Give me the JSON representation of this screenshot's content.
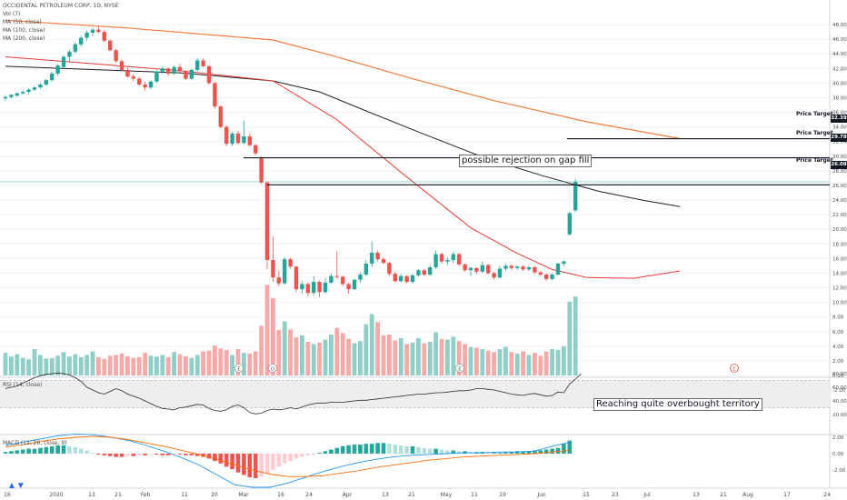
{
  "chart_data": {
    "type": "candlestick",
    "legend": {
      "symbol": "OCCIDENTAL PETROLEUM CORP, 1D, NYSE",
      "volume": "Vol (7)",
      "ma50": "MA (50, close)",
      "ma100": "MA (100, close)",
      "ma200": "MA (200, close)"
    },
    "price_axis": {
      "ylim": [
        -2,
        49
      ],
      "ticks": [
        "48.00",
        "46.00",
        "44.00",
        "42.00",
        "40.00",
        "38.00",
        "36.00",
        "34.00",
        "32.00",
        "30.00",
        "28.00",
        "26.00",
        "24.00",
        "22.00",
        "20.00",
        "18.00",
        "16.00",
        "14.00",
        "12.00",
        "10.00",
        "8.00",
        "6.00",
        "4.00",
        "2.00",
        "0.00",
        "-2.00"
      ]
    },
    "x_axis": {
      "labels": [
        "16",
        "2020",
        "13",
        "21",
        "Feb",
        "11",
        "20",
        "Mar",
        "16",
        "24",
        "Apr",
        "13",
        "21",
        "May",
        "11",
        "19",
        "Jun",
        "15",
        "23",
        "Jul",
        "13",
        "21",
        "Aug",
        "17",
        "24"
      ]
    },
    "candles": [
      [
        37.9,
        38.3,
        37.6,
        38.1
      ],
      [
        38.1,
        38.5,
        37.9,
        38.4
      ],
      [
        38.3,
        38.7,
        38.1,
        38.6
      ],
      [
        38.6,
        39.0,
        38.4,
        38.8
      ],
      [
        38.8,
        39.3,
        38.5,
        39.1
      ],
      [
        39.1,
        39.6,
        38.9,
        39.4
      ],
      [
        39.4,
        40.0,
        39.2,
        39.8
      ],
      [
        39.8,
        40.6,
        39.6,
        40.4
      ],
      [
        40.4,
        41.6,
        40.2,
        41.3
      ],
      [
        41.3,
        42.6,
        41.0,
        42.4
      ],
      [
        42.2,
        43.8,
        42.0,
        43.6
      ],
      [
        43.6,
        44.6,
        42.9,
        44.3
      ],
      [
        44.3,
        45.6,
        44.0,
        45.3
      ],
      [
        45.3,
        46.5,
        45.0,
        46.2
      ],
      [
        46.2,
        47.2,
        45.8,
        46.9
      ],
      [
        46.9,
        47.6,
        46.4,
        47.3
      ],
      [
        47.3,
        47.8,
        46.8,
        47.0
      ],
      [
        47.0,
        47.3,
        45.6,
        45.8
      ],
      [
        45.8,
        46.0,
        44.3,
        44.5
      ],
      [
        44.5,
        44.7,
        42.8,
        43.0
      ],
      [
        43.0,
        43.2,
        41.6,
        41.8
      ],
      [
        41.8,
        42.1,
        40.7,
        40.9
      ],
      [
        40.9,
        41.2,
        40.3,
        40.6
      ],
      [
        40.6,
        40.9,
        39.6,
        39.8
      ],
      [
        39.8,
        40.2,
        39.0,
        39.4
      ],
      [
        39.4,
        40.4,
        39.2,
        40.2
      ],
      [
        40.2,
        41.8,
        40.0,
        41.6
      ],
      [
        41.6,
        42.3,
        41.2,
        42.0
      ],
      [
        42.0,
        42.2,
        41.0,
        41.3
      ],
      [
        41.3,
        42.4,
        41.1,
        42.2
      ],
      [
        42.2,
        42.6,
        41.4,
        41.6
      ],
      [
        41.6,
        41.8,
        40.4,
        40.6
      ],
      [
        40.6,
        42.0,
        40.4,
        41.8
      ],
      [
        41.8,
        43.4,
        41.6,
        43.1
      ],
      [
        43.1,
        43.4,
        42.1,
        42.3
      ],
      [
        42.3,
        42.5,
        39.8,
        40.0
      ],
      [
        40.0,
        40.2,
        36.5,
        36.8
      ],
      [
        36.8,
        37.0,
        33.8,
        34.0
      ],
      [
        34.0,
        34.2,
        31.4,
        31.7
      ],
      [
        31.7,
        33.3,
        31.4,
        33.1
      ],
      [
        33.1,
        33.5,
        31.6,
        31.8
      ],
      [
        31.8,
        34.8,
        31.6,
        32.7
      ],
      [
        32.7,
        33.1,
        31.3,
        31.5
      ],
      [
        31.5,
        31.7,
        30.1,
        30.4
      ],
      [
        29.8,
        30.0,
        26.2,
        26.4
      ],
      [
        26.4,
        26.6,
        14.6,
        15.8
      ],
      [
        15.8,
        19.0,
        12.8,
        13.4
      ],
      [
        13.4,
        14.3,
        12.2,
        12.6
      ],
      [
        12.6,
        16.2,
        12.4,
        15.9
      ],
      [
        15.9,
        16.1,
        14.6,
        14.9
      ],
      [
        14.9,
        15.0,
        11.4,
        11.8
      ],
      [
        11.8,
        12.9,
        11.2,
        12.5
      ],
      [
        12.5,
        12.7,
        10.8,
        11.3
      ],
      [
        11.3,
        13.6,
        10.9,
        12.8
      ],
      [
        12.8,
        13.0,
        10.7,
        11.4
      ],
      [
        11.4,
        13.3,
        11.2,
        12.7
      ],
      [
        12.7,
        13.9,
        12.5,
        13.6
      ],
      [
        13.6,
        17.0,
        13.2,
        13.5
      ],
      [
        13.5,
        13.7,
        12.2,
        12.5
      ],
      [
        12.5,
        12.7,
        11.2,
        11.8
      ],
      [
        11.8,
        13.2,
        11.7,
        13.1
      ],
      [
        13.1,
        14.1,
        12.7,
        13.8
      ],
      [
        13.8,
        15.8,
        13.6,
        15.3
      ],
      [
        15.3,
        18.3,
        14.8,
        16.8
      ],
      [
        16.8,
        17.1,
        15.6,
        15.9
      ],
      [
        15.9,
        16.2,
        15.2,
        15.4
      ],
      [
        15.4,
        15.6,
        13.6,
        13.9
      ],
      [
        13.9,
        14.2,
        12.7,
        12.9
      ],
      [
        12.9,
        13.9,
        12.7,
        13.6
      ],
      [
        13.6,
        13.7,
        12.6,
        12.8
      ],
      [
        12.8,
        13.9,
        12.6,
        13.7
      ],
      [
        13.7,
        14.6,
        13.5,
        14.4
      ],
      [
        14.4,
        14.6,
        13.6,
        13.8
      ],
      [
        13.8,
        15.1,
        13.6,
        14.8
      ],
      [
        14.8,
        17.1,
        14.6,
        16.6
      ],
      [
        16.6,
        16.8,
        15.3,
        15.6
      ],
      [
        15.6,
        16.1,
        15.2,
        15.8
      ],
      [
        15.8,
        17.0,
        15.4,
        16.6
      ],
      [
        16.6,
        16.8,
        14.9,
        15.2
      ],
      [
        15.2,
        15.3,
        14.2,
        14.4
      ],
      [
        14.4,
        14.9,
        13.6,
        14.7
      ],
      [
        14.7,
        14.8,
        13.9,
        14.2
      ],
      [
        14.2,
        15.6,
        14.0,
        15.1
      ],
      [
        15.1,
        15.3,
        13.8,
        14.0
      ],
      [
        14.0,
        14.2,
        13.1,
        13.4
      ],
      [
        13.4,
        15.0,
        13.2,
        14.6
      ],
      [
        14.6,
        15.3,
        14.3,
        15.0
      ],
      [
        15.0,
        15.2,
        14.4,
        14.7
      ],
      [
        14.7,
        15.0,
        14.4,
        14.9
      ],
      [
        14.9,
        15.1,
        14.3,
        14.5
      ],
      [
        14.5,
        15.0,
        14.3,
        14.8
      ],
      [
        14.8,
        15.0,
        13.9,
        14.1
      ],
      [
        14.1,
        14.3,
        13.6,
        13.8
      ],
      [
        13.8,
        14.0,
        12.9,
        13.2
      ],
      [
        13.2,
        14.0,
        13.0,
        13.8
      ],
      [
        13.8,
        15.4,
        13.7,
        15.3
      ],
      [
        15.3,
        15.7,
        15.0,
        15.6
      ],
      [
        19.3,
        22.4,
        19.1,
        22.2
      ],
      [
        22.6,
        26.9,
        22.3,
        26.5
      ]
    ],
    "volume": [
      3.1,
      2.6,
      2.9,
      2.4,
      2.2,
      3.6,
      2.8,
      2.3,
      2.4,
      2.7,
      3.2,
      2.6,
      2.9,
      2.5,
      2.8,
      3.3,
      2.5,
      2.3,
      2.7,
      2.8,
      3.0,
      2.6,
      2.4,
      2.5,
      3.1,
      2.7,
      2.6,
      2.8,
      2.5,
      3.2,
      2.9,
      2.6,
      2.4,
      2.8,
      3.3,
      3.4,
      4.1,
      3.7,
      3.5,
      2.8,
      3.6,
      3.1,
      3.0,
      3.3,
      6.8,
      12.4,
      10.6,
      6.2,
      7.4,
      6.3,
      5.2,
      5.5,
      4.6,
      4.3,
      4.5,
      4.9,
      5.6,
      6.5,
      5.8,
      5.0,
      4.4,
      4.7,
      7.0,
      8.4,
      7.3,
      5.5,
      5.6,
      4.8,
      5.1,
      4.3,
      4.5,
      5.1,
      4.4,
      4.6,
      5.9,
      5.0,
      4.9,
      5.3,
      4.7,
      4.3,
      3.9,
      3.8,
      3.6,
      3.4,
      3.2,
      3.6,
      3.9,
      3.2,
      3.0,
      3.3,
      2.8,
      3.1,
      2.7,
      3.3,
      3.6,
      3.5,
      4.0,
      10.1,
      10.8
    ],
    "moving_averages": {
      "ma50": [
        [
          0,
          43.6
        ],
        [
          30,
          41.7
        ],
        [
          46,
          40.3
        ],
        [
          57,
          35
        ],
        [
          68,
          27.8
        ],
        [
          80,
          20.2
        ],
        [
          88,
          16.7
        ],
        [
          94,
          14.5
        ],
        [
          100,
          13.4
        ],
        [
          108,
          13.3
        ],
        [
          116,
          14.3
        ]
      ],
      "ma100": [
        [
          0,
          42.3
        ],
        [
          20,
          41.7
        ],
        [
          30,
          41.4
        ],
        [
          46,
          40.3
        ],
        [
          54,
          38.8
        ],
        [
          62,
          36.2
        ],
        [
          72,
          33
        ],
        [
          82,
          29.9
        ],
        [
          92,
          27.4
        ],
        [
          102,
          25.2
        ],
        [
          110,
          23.9
        ],
        [
          116,
          23.1
        ]
      ],
      "ma200": [
        [
          0,
          48.6
        ],
        [
          20,
          47.6
        ],
        [
          46,
          45.9
        ],
        [
          56,
          43.8
        ],
        [
          70,
          40.6
        ],
        [
          84,
          37.6
        ],
        [
          100,
          34.7
        ],
        [
          116,
          32.4
        ]
      ]
    },
    "price_targets": [
      {
        "value": 32.39,
        "label": "Price Target",
        "tag": "32.39"
      },
      {
        "value": 29.78,
        "label": "Price Target",
        "tag": "29.78"
      },
      {
        "value": 26.08,
        "label": "Price Target",
        "tag": "26.08"
      }
    ],
    "annotations": {
      "gap_fill": "possible rejection on gap fill",
      "rsi_note": "Reaching quite overbought territory"
    },
    "rsi": {
      "label": "RSI (14, close)",
      "ticks": [
        "80.00",
        "60.00",
        "40.00",
        "20.00"
      ],
      "band": [
        30,
        70
      ],
      "values": [
        58,
        60,
        62,
        66,
        70,
        74,
        77,
        79,
        80,
        81,
        80,
        78,
        74,
        69,
        60,
        56,
        52,
        50,
        54,
        58,
        55,
        50,
        47,
        44,
        40,
        36,
        32,
        29,
        28,
        27,
        30,
        31,
        33,
        35,
        34,
        29,
        26,
        25,
        27,
        32,
        34,
        30,
        23,
        21,
        22,
        26,
        28,
        27,
        28,
        30,
        28,
        31,
        34,
        36,
        37,
        37,
        38,
        38,
        38,
        39,
        40,
        41,
        41,
        42,
        43,
        44,
        45,
        46,
        47,
        48,
        49,
        50,
        50,
        51,
        52,
        52,
        53,
        54,
        55,
        55,
        56,
        58,
        58,
        57,
        56,
        54,
        52,
        50,
        49,
        48,
        50,
        51,
        49,
        47,
        48,
        53,
        52,
        65,
        72,
        80
      ]
    },
    "macd": {
      "label": "MACD (12, 26, close, 9)",
      "ticks": [
        "2.00",
        "0.00",
        "-2.00"
      ],
      "histogram": [
        0.2,
        0.3,
        0.4,
        0.5,
        0.6,
        0.6,
        0.7,
        0.8,
        0.9,
        1.0,
        1.0,
        0.9,
        0.8,
        0.6,
        0.4,
        0.1,
        -0.1,
        -0.2,
        -0.3,
        -0.4,
        -0.4,
        -0.3,
        -0.3,
        -0.2,
        -0.2,
        -0.1,
        -0.1,
        -0.2,
        -0.2,
        -0.1,
        -0.1,
        -0.2,
        -0.2,
        -0.3,
        -0.4,
        -0.6,
        -0.9,
        -1.2,
        -1.6,
        -1.9,
        -2.3,
        -2.6,
        -2.9,
        -3.0,
        -2.8,
        -2.4,
        -2.0,
        -1.6,
        -1.2,
        -0.9,
        -0.6,
        -0.4,
        -0.2,
        -0.1,
        0.1,
        0.3,
        0.5,
        0.7,
        0.9,
        1.0,
        1.1,
        1.1,
        1.2,
        1.2,
        1.3,
        1.3,
        1.2,
        1.1,
        1.0,
        0.9,
        0.9,
        0.8,
        0.7,
        0.6,
        0.6,
        0.5,
        0.4,
        0.4,
        0.3,
        0.3,
        0.2,
        0.2,
        0.2,
        0.1,
        0.1,
        0.1,
        0.2,
        0.2,
        0.3,
        0.3,
        0.3,
        0.4,
        0.4,
        0.5,
        0.6,
        0.7,
        1.2,
        1.6
      ],
      "macd_line": [
        1.0,
        1.4,
        1.8,
        2.2,
        2.4,
        2.3,
        2.0,
        1.6,
        1.0,
        0.3,
        -0.5,
        -1.4,
        -2.6,
        -3.8,
        -4.4,
        -4.2,
        -3.6,
        -2.9,
        -2.2,
        -1.6,
        -1.1,
        -0.7,
        -0.4,
        -0.2,
        -0.1,
        0.0,
        0.1,
        0.1,
        0.2,
        0.2,
        0.3,
        0.9,
        1.4
      ],
      "signal_line": [
        0.8,
        1.1,
        1.5,
        1.8,
        2.0,
        2.1,
        2.0,
        1.7,
        1.3,
        0.9,
        0.4,
        -0.1,
        -0.7,
        -1.4,
        -2.0,
        -2.5,
        -2.8,
        -2.8,
        -2.7,
        -2.4,
        -2.1,
        -1.7,
        -1.4,
        -1.1,
        -0.8,
        -0.6,
        -0.4,
        -0.3,
        -0.2,
        -0.1,
        0.0,
        0.2,
        0.4
      ]
    },
    "events": [
      "E",
      "D",
      "E",
      "E"
    ],
    "colors": {
      "up": "#26a69a",
      "down": "#ef5350",
      "up_volume": "#8fcfc8",
      "down_volume": "#f7a9a7",
      "ma50": "#e53935",
      "ma100": "#212121",
      "ma200": "#f57c3a",
      "rsi": "#2d2d2d",
      "macd_line": "#2196f3",
      "signal_line": "#ff6d00",
      "current_price_line": "#26a69a"
    }
  }
}
